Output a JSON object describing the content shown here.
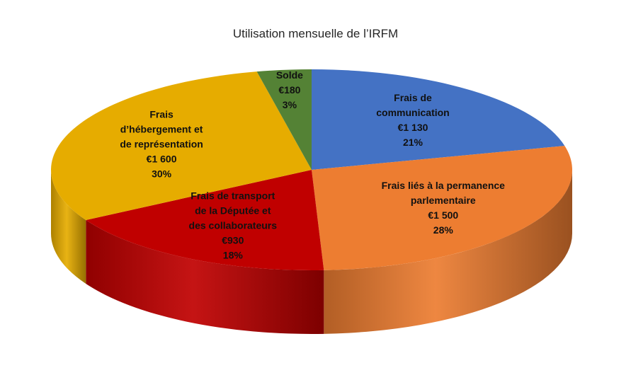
{
  "chart_data": {
    "type": "pie",
    "title": "Utilisation mensuelle de l’IRFM",
    "currency": "€",
    "slices": [
      {
        "name": "Frais de communication",
        "label_lines": [
          "Frais de",
          "communication"
        ],
        "value": 1130,
        "value_label": "€1 130",
        "percent_label": "21%",
        "color": "#4472C4"
      },
      {
        "name": "Frais liés à la permanence parlementaire",
        "label_lines": [
          "Frais liés à la permanence",
          "parlementaire"
        ],
        "value": 1500,
        "value_label": "€1 500",
        "percent_label": "28%",
        "color": "#ED7D31"
      },
      {
        "name": "Frais de transport de la Députée et des collaborateurs",
        "label_lines": [
          "Frais de transport",
          "de la Députée et",
          "des collaborateurs"
        ],
        "value": 930,
        "value_label": "€930",
        "percent_label": "18%",
        "color": "#C00000"
      },
      {
        "name": "Frais d’hébergement et de représentation",
        "label_lines": [
          "Frais",
          "d’hébergement et",
          "de représentation"
        ],
        "value": 1600,
        "value_label": "€1 600",
        "percent_label": "30%",
        "color": "#E6AC00"
      },
      {
        "name": "Solde",
        "label_lines": [
          "Solde"
        ],
        "value": 180,
        "value_label": "€180",
        "percent_label": "3%",
        "color": "#548235"
      }
    ],
    "legend": "none",
    "start_angle": "12 o'clock, clockwise",
    "style": "3d"
  }
}
